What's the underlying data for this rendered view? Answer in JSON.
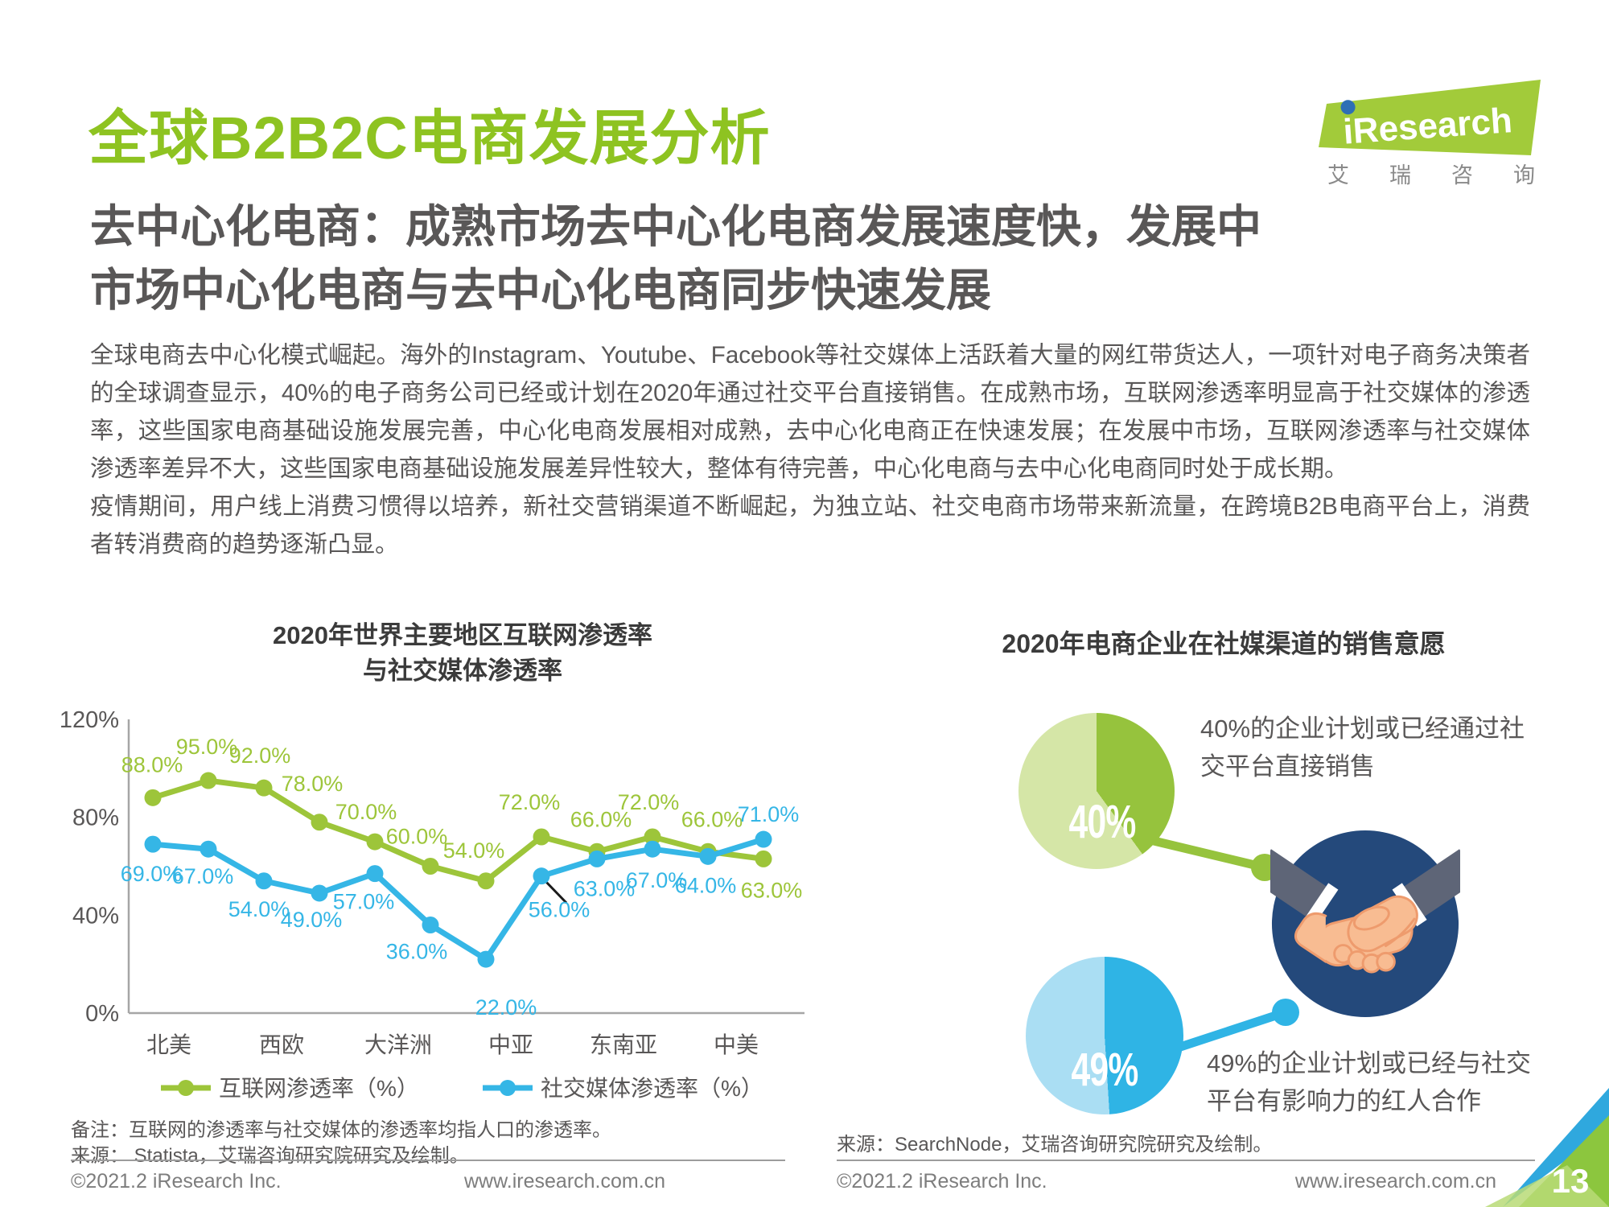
{
  "page": {
    "title": "全球B2B2C电商发展分析",
    "subtitle_lines": [
      "去中心化电商：成熟市场去中心化电商发展速度快，发展中",
      "市场中心化电商与去中心化电商同步快速发展"
    ],
    "body_paragraph1": "全球电商去中心化模式崛起。海外的Instagram、Youtube、Facebook等社交媒体上活跃着大量的网红带货达人，一项针对电子商务决策者的全球调查显示，40%的电子商务公司已经或计划在2020年通过社交平台直接销售。在成熟市场，互联网渗透率明显高于社交媒体的渗透率，这些国家电商基础设施发展完善，中心化电商发展相对成熟，去中心化电商正在快速发展；在发展中市场，互联网渗透率与社交媒体渗透率差异不大，这些国家电商基础设施发展差异性较大，整体有待完善，中心化电商与去中心化电商同时处于成长期。",
    "body_paragraph2": "疫情期间，用户线上消费习惯得以培养，新社交营销渠道不断崛起，为独立站、社交电商市场带来新流量，在跨境B2B电商平台上，消费者转消费商的趋势逐渐凸显。"
  },
  "logo": {
    "brand": "iResearch",
    "brand_cn_chars": [
      "艾",
      "瑞",
      "咨",
      "询"
    ],
    "green": "#a2cb3a",
    "dot_blue": "#2e6fb5"
  },
  "chart_data": [
    {
      "type": "line",
      "title": "2020年世界主要地区互联网渗透率与社交媒体渗透率",
      "title_lines": [
        "2020年世界主要地区互联网渗透率",
        "与社交媒体渗透率"
      ],
      "categories": [
        "北美",
        "西欧",
        "大洋洲",
        "中亚",
        "东南亚",
        "中美"
      ],
      "points_per_category": 2,
      "series": [
        {
          "name": "互联网渗透率（%）",
          "color": "#9dc53a",
          "values": [
            88,
            95,
            92,
            78,
            70,
            60,
            54,
            72,
            66,
            72,
            66,
            63
          ]
        },
        {
          "name": "社交媒体渗透率（%）",
          "color": "#35b6e6",
          "values": [
            69,
            67,
            54,
            49,
            57,
            36,
            22,
            56,
            63,
            67,
            64,
            71
          ]
        }
      ],
      "ylim": [
        0,
        120
      ],
      "yticks": [
        {
          "v": 0,
          "label": "0%"
        },
        {
          "v": 40,
          "label": "40%"
        },
        {
          "v": 80,
          "label": "80%"
        },
        {
          "v": 120,
          "label": "120%"
        }
      ],
      "grid": false,
      "legend_position": "bottom",
      "note": "备注：互联网的渗透率与社交媒体的渗透率均指人口的渗透率。",
      "source": "来源： Statista，艾瑞咨询研究院研究及绘制。"
    },
    {
      "type": "pie",
      "title": "2020年电商企业在社媒渠道的销售意愿",
      "pies": [
        {
          "value": 40,
          "label": "40%",
          "slice_color": "#96c33d",
          "rest_color": "#d5e6a7",
          "caption": "40%的企业计划或已经通过社交平台直接销售",
          "caption_lines": [
            "40%的企业计划或已经通过社",
            "交平台直接销售"
          ]
        },
        {
          "value": 49,
          "label": "49%",
          "slice_color": "#2fb4e5",
          "rest_color": "#aadef3",
          "caption": "49%的企业计划或已经与社交平台有影响力的红人合作",
          "caption_lines": [
            "49%的企业计划或已经与社交",
            "平台有影响力的红人合作"
          ]
        }
      ],
      "icon": "handshake-icon",
      "source": "来源：SearchNode，艾瑞咨询研究院研究及绘制。"
    }
  ],
  "footer": {
    "left_copyright": "©2021.2 iResearch Inc.",
    "left_site": "www.iresearch.com.cn",
    "right_copyright": "©2021.2 iResearch Inc.",
    "right_site": "www.iresearch.com.cn",
    "page_number": "13"
  },
  "colors": {
    "title_green": "#8ec321",
    "navy": "#24497b",
    "text_gray": "#595757"
  }
}
